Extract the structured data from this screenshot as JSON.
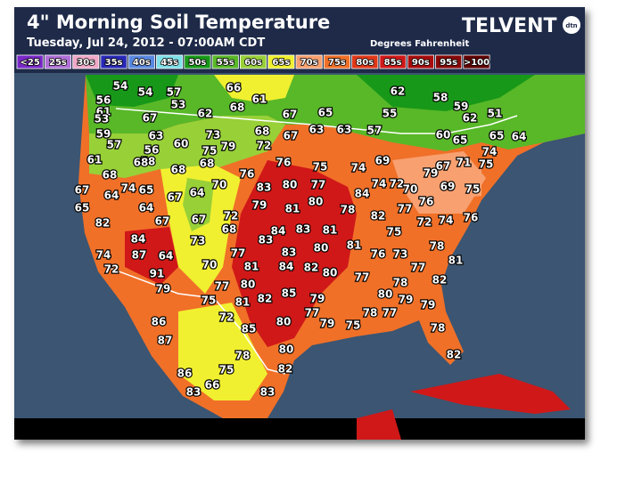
{
  "header": {
    "title": "4\" Morning Soil Temperature",
    "subtitle": "Tuesday, Jul 24, 2012 - 07:00AM CDT",
    "units": "Degrees Fahrenheit",
    "logo": "TELVENT",
    "logo_badge": "dtn"
  },
  "legend": {
    "items": [
      {
        "label": "<25",
        "color": "#7a28c8"
      },
      {
        "label": "25s",
        "color": "#b070d8"
      },
      {
        "label": "30s",
        "color": "#f0a8c8"
      },
      {
        "label": "35s",
        "color": "#2828b8"
      },
      {
        "label": "40s",
        "color": "#5888e0"
      },
      {
        "label": "45s",
        "color": "#80e0e8"
      },
      {
        "label": "50s",
        "color": "#189818"
      },
      {
        "label": "55s",
        "color": "#58b828"
      },
      {
        "label": "60s",
        "color": "#98d038"
      },
      {
        "label": "65s",
        "color": "#f0f030"
      },
      {
        "label": "70s",
        "color": "#f8a070"
      },
      {
        "label": "75s",
        "color": "#f07028"
      },
      {
        "label": "80s",
        "color": "#e03818"
      },
      {
        "label": "85s",
        "color": "#d01818"
      },
      {
        "label": "90s",
        "color": "#a80c0c"
      },
      {
        "label": "95s",
        "color": "#880808"
      },
      {
        "label": ">100",
        "color": "#600000"
      }
    ]
  },
  "map": {
    "stations": [
      56,
      54,
      54,
      66,
      68,
      61,
      57,
      53,
      62,
      67,
      61,
      53,
      59,
      57,
      63,
      56,
      58,
      60,
      73,
      75,
      79,
      68,
      72,
      67,
      67,
      65,
      63,
      63,
      57,
      62,
      55,
      58,
      59,
      62,
      51,
      64,
      65,
      60,
      65,
      61,
      68,
      68,
      68,
      68,
      76,
      76,
      70,
      75,
      77,
      74,
      69,
      74,
      72,
      79,
      67,
      71,
      75,
      74,
      67,
      64,
      74,
      65,
      67,
      64,
      83,
      80,
      79,
      81,
      80,
      78,
      84,
      70,
      69,
      75,
      65,
      82,
      64,
      67,
      67,
      72,
      68,
      83,
      84,
      83,
      81,
      80,
      81,
      82,
      77,
      75,
      76,
      74,
      72,
      76,
      84,
      87,
      64,
      73,
      77,
      83,
      81,
      84,
      82,
      80,
      76,
      73,
      78,
      77,
      81,
      74,
      72,
      91,
      70,
      77,
      79,
      80,
      77,
      81,
      82,
      85,
      79,
      78,
      80,
      82,
      75,
      77,
      79,
      79,
      86,
      72,
      80,
      79,
      75,
      78,
      77,
      87,
      85,
      78,
      80,
      78,
      82,
      75,
      82,
      86,
      83,
      66,
      83
    ]
  }
}
